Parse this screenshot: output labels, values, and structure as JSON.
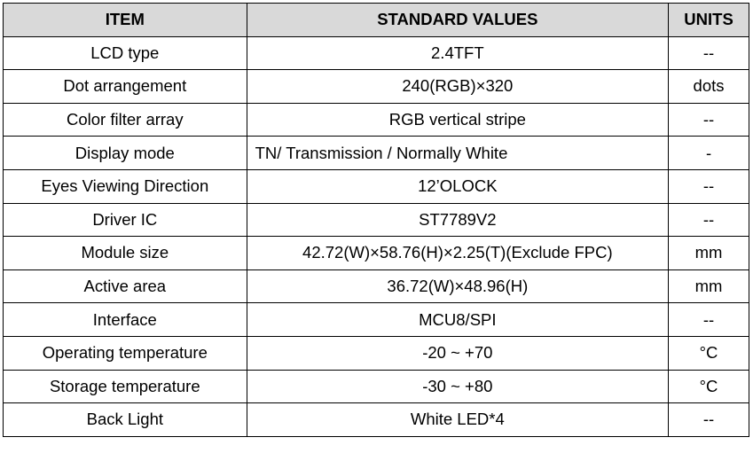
{
  "table": {
    "header": [
      "ITEM",
      "STANDARD VALUES",
      "UNITS"
    ],
    "rows": [
      [
        "LCD type",
        "2.4TFT",
        "--"
      ],
      [
        "Dot arrangement",
        "240(RGB)×320",
        "dots"
      ],
      [
        "Color filter array",
        "RGB vertical stripe",
        "--"
      ],
      [
        "Display mode",
        "TN/ Transmission / Normally White",
        "-"
      ],
      [
        "Eyes Viewing Direction",
        "12’OLOCK",
        "--"
      ],
      [
        "Driver IC",
        "ST7789V2",
        "--"
      ],
      [
        "Module size",
        "42.72(W)×58.76(H)×2.25(T)(Exclude FPC)",
        "mm"
      ],
      [
        "Active area",
        "36.72(W)×48.96(H)",
        "mm"
      ],
      [
        "Interface",
        "MCU8/SPI",
        "--"
      ],
      [
        "Operating temperature",
        "-20 ~ +70",
        "°C"
      ],
      [
        "Storage temperature",
        "-30 ~ +80",
        "°C"
      ],
      [
        "Back Light",
        "White LED*4",
        "--"
      ]
    ]
  }
}
